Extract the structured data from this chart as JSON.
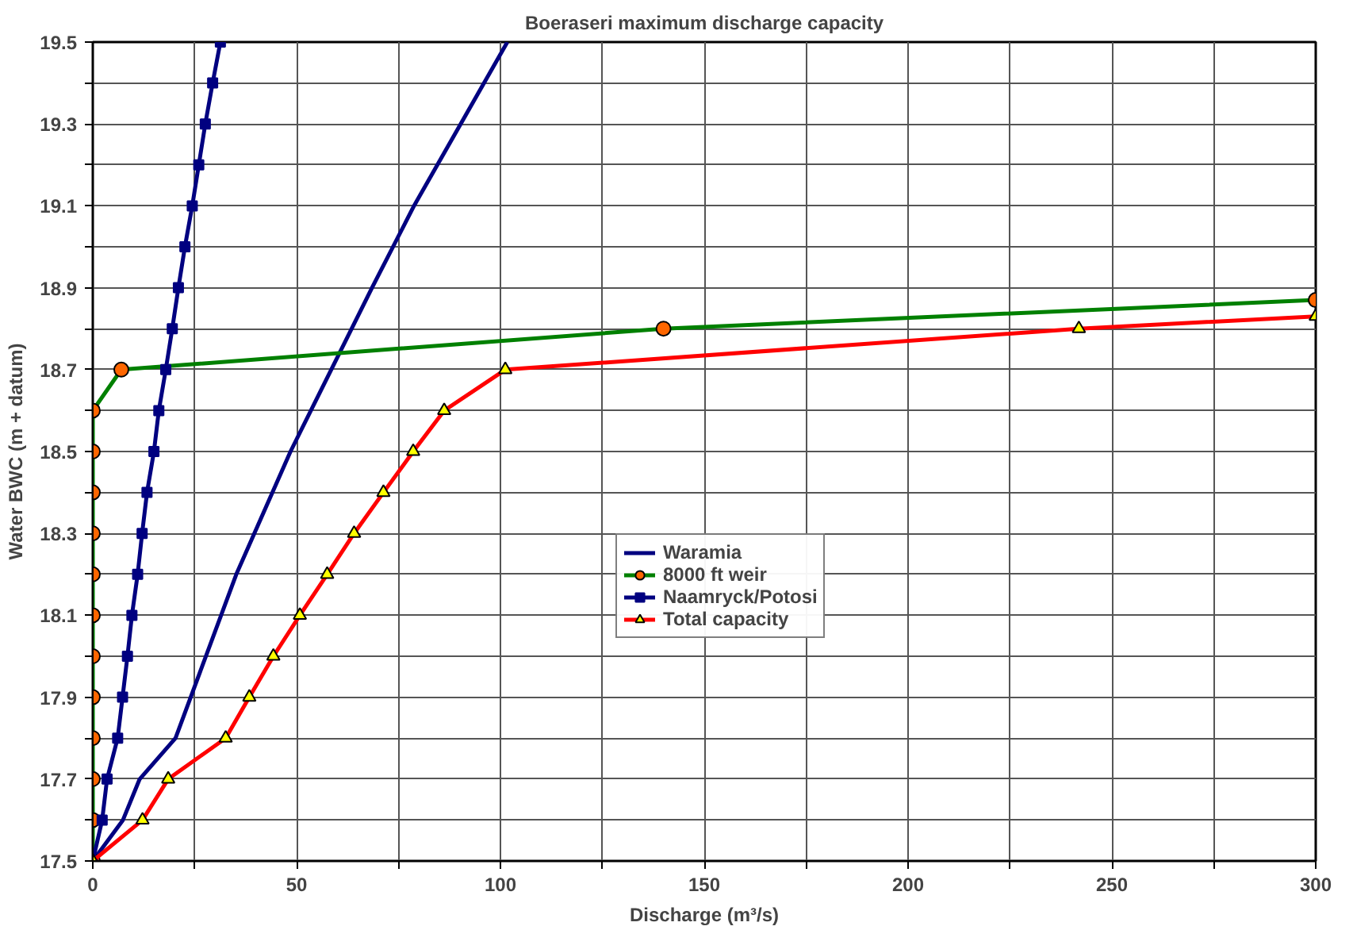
{
  "chart_data": {
    "type": "line",
    "title": "Boeraseri maximum discharge capacity",
    "xlabel": "Discharge (m³/s)",
    "ylabel": "Water BWC (m + datum)",
    "xlim": [
      0,
      300
    ],
    "ylim": [
      17.5,
      19.5
    ],
    "xticks": [
      0,
      {
        "value": 25,
        "label": null
      },
      50,
      {
        "value": 75,
        "label": null
      },
      100,
      {
        "value": 125,
        "label": null
      },
      150,
      {
        "value": 175,
        "label": null
      },
      200,
      {
        "value": 225,
        "label": null
      },
      250,
      {
        "value": 275,
        "label": null
      },
      300
    ],
    "yticks": [
      17.5,
      {
        "value": 17.6,
        "label": null
      },
      17.7,
      {
        "value": 17.8,
        "label": null
      },
      17.9,
      {
        "value": 18.0,
        "label": null
      },
      18.1,
      {
        "value": 18.2,
        "label": null
      },
      18.3,
      {
        "value": 18.4,
        "label": null
      },
      18.5,
      {
        "value": 18.6,
        "label": null
      },
      18.7,
      {
        "value": 18.8,
        "label": null
      },
      18.9,
      {
        "value": 19.0,
        "label": null
      },
      19.1,
      {
        "value": 19.2,
        "label": null
      },
      19.3,
      {
        "value": 19.4,
        "label": null
      },
      19.5
    ],
    "grid": true,
    "legend": "center",
    "line_style": "solid",
    "series": [
      {
        "name": "Waramia",
        "color": "#000080",
        "marker": "none",
        "x": [
          0,
          7.4,
          11.5,
          20.3,
          35.2,
          48.5,
          68.5,
          78.8,
          101.7
        ],
        "values": [
          17.5,
          17.6,
          17.7,
          17.8,
          18.2,
          18.5,
          18.9,
          19.1,
          19.5
        ]
      },
      {
        "name": "8000 ft weir",
        "color": "#008000",
        "marker": "circle",
        "x": [
          0,
          0,
          0,
          0,
          0,
          0,
          0,
          0,
          0,
          0,
          0,
          0,
          7,
          140,
          300
        ],
        "values": [
          17.5,
          17.6,
          17.7,
          17.8,
          17.9,
          18.0,
          18.1,
          18.2,
          18.3,
          18.4,
          18.5,
          18.6,
          18.7,
          18.8,
          18.87
        ]
      },
      {
        "name": "Naamryck/Potosi",
        "color": "#000080",
        "marker": "square",
        "x": [
          0,
          2.3,
          3.5,
          6.1,
          7.3,
          8.5,
          9.6,
          11.0,
          12.1,
          13.3,
          15.0,
          16.2,
          17.9,
          19.5,
          21.0,
          22.6,
          24.4,
          26.0,
          27.6,
          29.4,
          31.3
        ],
        "values": [
          17.5,
          17.6,
          17.7,
          17.8,
          17.9,
          18.0,
          18.1,
          18.2,
          18.3,
          18.4,
          18.5,
          18.6,
          18.7,
          18.8,
          18.9,
          19.0,
          19.1,
          19.2,
          19.3,
          19.4,
          19.5
        ]
      },
      {
        "name": "Total capacity",
        "color": "#ff0000",
        "marker": "triangle",
        "x": [
          0,
          12.2,
          18.5,
          32.6,
          38.4,
          44.3,
          50.8,
          57.5,
          64.1,
          71.3,
          78.6,
          86.2,
          101.2,
          241.9,
          300
        ],
        "values": [
          17.5,
          17.6,
          17.7,
          17.8,
          17.9,
          18.0,
          18.1,
          18.2,
          18.3,
          18.4,
          18.5,
          18.6,
          18.7,
          18.8,
          18.83
        ]
      }
    ]
  }
}
